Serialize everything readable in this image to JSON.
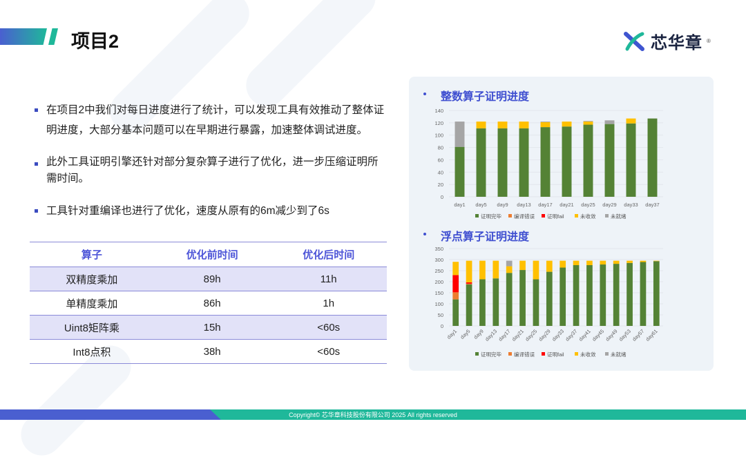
{
  "header": {
    "title": "项目2",
    "logo_text": "芯华章",
    "logo_mark": "®"
  },
  "bullets": [
    "在项目2中我们对每日进度进行了统计，可以发现工具有效推动了整体证明进度，大部分基本问题可以在早期进行暴露，加速整体调试进度。",
    "此外工具证明引擎还针对部分复杂算子进行了优化，进一步压缩证明所需时间。",
    "工具针对重编译也进行了优化，速度从原有的6m减少到了6s"
  ],
  "table": {
    "headers": [
      "算子",
      "优化前时间",
      "优化后时间"
    ],
    "rows": [
      [
        "双精度乘加",
        "89h",
        "11h"
      ],
      [
        "单精度乘加",
        "86h",
        "1h"
      ],
      [
        "Uint8矩阵乘",
        "15h",
        "<60s"
      ],
      [
        "Int8点积",
        "38h",
        "<60s"
      ]
    ]
  },
  "colors": {
    "证明完毕": "#548235",
    "编译错误": "#ed7d31",
    "证明fail": "#ff0000",
    "未收敛": "#ffc000",
    "未就绪": "#a5a5a5"
  },
  "chart_data": [
    {
      "type": "bar",
      "stacked": true,
      "title": "整数算子证明进度",
      "ylim": [
        0,
        140
      ],
      "yticks": [
        0,
        20,
        40,
        60,
        80,
        100,
        120,
        140
      ],
      "legend": "bottom",
      "grid": true,
      "categories": [
        "day1",
        "day5",
        "day9",
        "day13",
        "day17",
        "day21",
        "day25",
        "day29",
        "day33",
        "day37"
      ],
      "series": [
        {
          "name": "证明完毕",
          "values": [
            81,
            111,
            111,
            111,
            113,
            114,
            117,
            118,
            119,
            127
          ]
        },
        {
          "name": "编译错误",
          "values": [
            0,
            0,
            0,
            0,
            0,
            0,
            0,
            0,
            0,
            0
          ]
        },
        {
          "name": "证明fail",
          "values": [
            0,
            0,
            0,
            0,
            0,
            0,
            0,
            0,
            0,
            0
          ]
        },
        {
          "name": "未收敛",
          "values": [
            0,
            11,
            11,
            11,
            8,
            8,
            5,
            0,
            8,
            0
          ]
        },
        {
          "name": "未就绪",
          "values": [
            41,
            0,
            0,
            0,
            1,
            0,
            1,
            6,
            0,
            0
          ]
        }
      ]
    },
    {
      "type": "bar",
      "stacked": true,
      "title": "浮点算子证明进度",
      "ylim": [
        0,
        350
      ],
      "yticks": [
        0,
        50,
        100,
        150,
        200,
        250,
        300,
        350
      ],
      "legend": "bottom",
      "grid": true,
      "categories": [
        "day1",
        "day5",
        "day9",
        "day13",
        "day17",
        "day21",
        "day25",
        "day29",
        "day33",
        "day37",
        "day41",
        "day45",
        "day49",
        "day53",
        "day57",
        "day61"
      ],
      "series": [
        {
          "name": "证明完毕",
          "values": [
            120,
            188,
            211,
            215,
            240,
            253,
            211,
            245,
            264,
            275,
            275,
            278,
            281,
            285,
            289,
            293
          ]
        },
        {
          "name": "编译错误",
          "values": [
            32,
            3,
            0,
            0,
            0,
            0,
            0,
            0,
            0,
            0,
            0,
            0,
            0,
            0,
            0,
            0
          ]
        },
        {
          "name": "证明fail",
          "values": [
            78,
            6,
            0,
            0,
            0,
            0,
            0,
            0,
            0,
            0,
            0,
            0,
            0,
            0,
            0,
            0
          ]
        },
        {
          "name": "未收敛",
          "values": [
            60,
            98,
            84,
            80,
            30,
            42,
            84,
            50,
            31,
            20,
            20,
            17,
            14,
            10,
            6,
            2
          ]
        },
        {
          "name": "未就绪",
          "values": [
            0,
            0,
            0,
            0,
            25,
            0,
            0,
            0,
            0,
            0,
            0,
            0,
            0,
            0,
            0,
            0
          ]
        }
      ]
    }
  ],
  "footer": {
    "copyright": "Copyright© 芯华章科技股份有限公司 2025 All rights reserved"
  }
}
